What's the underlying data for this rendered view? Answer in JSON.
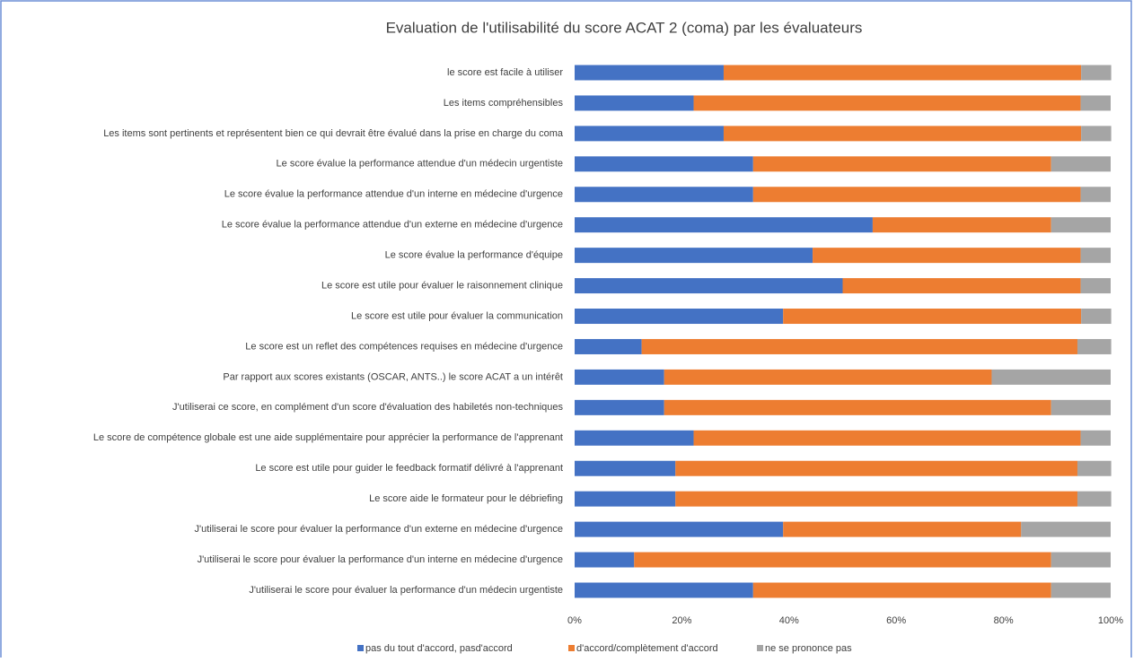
{
  "chart_data": {
    "type": "stacked_barh",
    "title": "Evaluation de l'utilisabilité du score ACAT 2 (coma) par les évaluateurs",
    "categories": [
      "le score est facile à utiliser",
      "Les items compréhensibles",
      "Les items sont pertinents et représentent bien ce qui devrait être évalué dans la prise en charge du coma",
      "Le score évalue la performance attendue d'un médecin urgentiste",
      "Le score évalue la performance attendue d'un interne en médecine d'urgence",
      "Le score évalue la performance attendue d'un externe en médecine d'urgence",
      "Le score évalue la performance d'équipe",
      "Le score est utile pour évaluer le raisonnement clinique",
      "Le score est utile pour évaluer la communication",
      "Le score est un reflet des compétences requises en médecine d'urgence",
      "Par rapport aux scores existants (OSCAR, ANTS..) le score ACAT a un intérêt",
      "J'utiliserai ce score, en complément d'un score d'évaluation des habiletés non-techniques",
      "Le score de compétence globale est une aide supplémentaire pour apprécier la performance de l'apprenant",
      "Le score est utile pour guider le feedback formatif délivré à l'apprenant",
      "Le score aide le formateur pour le débriefing",
      "J'utiliserai le score pour évaluer la performance d'un externe en médecine d'urgence",
      "J'utiliserai le score pour évaluer la performance d'un interne en médecine d'urgence",
      "J'utiliserai le score pour évaluer la performance d'un médecin urgentiste"
    ],
    "series": [
      {
        "name": "pas du tout d'accord, pasd'accord",
        "color": "#4472c4",
        "values": [
          27.8,
          22.2,
          27.8,
          33.3,
          33.3,
          55.6,
          44.4,
          50.0,
          38.9,
          12.5,
          16.7,
          16.7,
          22.2,
          18.8,
          18.8,
          38.9,
          11.1,
          33.3
        ]
      },
      {
        "name": "d'accord/complètement d'accord",
        "color": "#ed7d31",
        "values": [
          66.7,
          72.2,
          66.7,
          55.6,
          61.1,
          33.3,
          50.0,
          44.4,
          55.6,
          81.3,
          61.1,
          72.2,
          72.2,
          75.0,
          75.0,
          44.4,
          77.8,
          55.6
        ]
      },
      {
        "name": "ne se prononce pas",
        "color": "#a5a5a5",
        "values": [
          5.6,
          5.6,
          5.6,
          11.1,
          5.6,
          11.1,
          5.6,
          5.6,
          5.6,
          6.3,
          22.2,
          11.1,
          5.6,
          6.3,
          6.3,
          16.7,
          11.1,
          11.1
        ]
      }
    ],
    "xlim": [
      0,
      100
    ],
    "xticks": [
      {
        "value": 0,
        "label": "0%"
      },
      {
        "value": 20,
        "label": "20%"
      },
      {
        "value": 40,
        "label": "40%"
      },
      {
        "value": 60,
        "label": "60%"
      },
      {
        "value": 80,
        "label": "80%"
      },
      {
        "value": 100,
        "label": "100%"
      }
    ],
    "legend": "bottom"
  }
}
